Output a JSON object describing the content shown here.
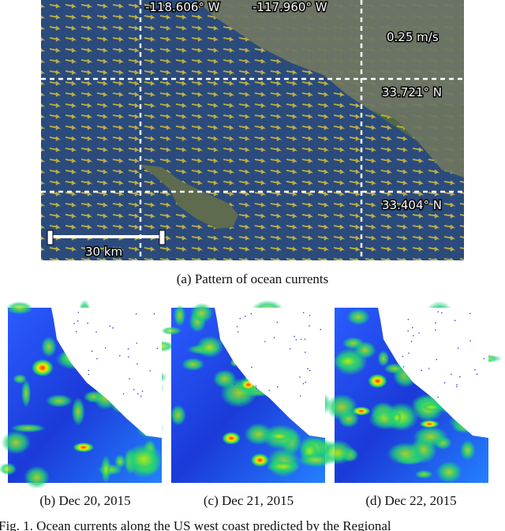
{
  "figure": {
    "panel_a": {
      "labels": {
        "lon_1": "-118.606° W",
        "lon_2": "-117.960° W",
        "scale_speed": "0.25 m/s",
        "lat_1": "33.721° N",
        "lat_2": "33.404° N",
        "scale_distance": "30 km"
      },
      "caption": "(a) Pattern of ocean currents"
    },
    "panels": [
      {
        "caption": "(b) Dec 20, 2015"
      },
      {
        "caption": "(c) Dec 21, 2015"
      },
      {
        "caption": "(d) Dec 22, 2015"
      }
    ],
    "caption": "Fig. 1.   Ocean currents along the US west coast predicted by the Regional"
  }
}
